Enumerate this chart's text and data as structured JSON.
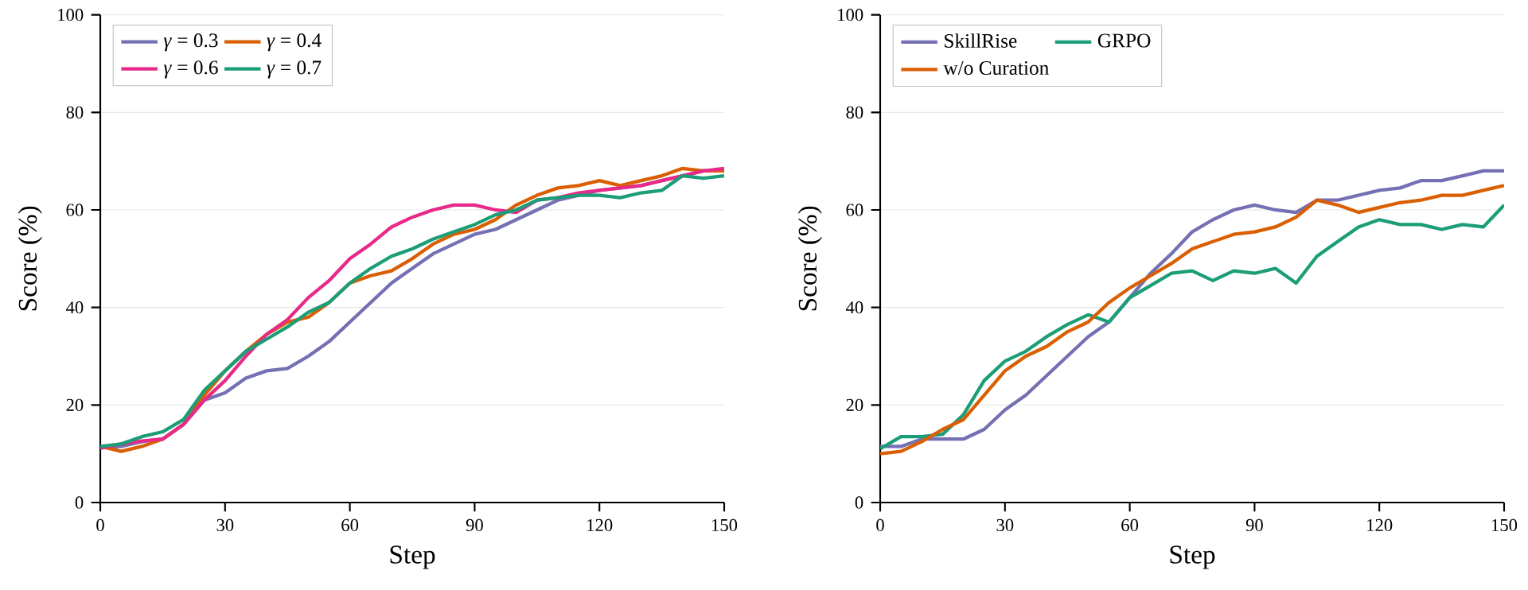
{
  "chart_data": [
    {
      "type": "line",
      "xlabel": "Step",
      "ylabel": "Score (%)",
      "xlim": [
        0,
        150
      ],
      "ylim": [
        0,
        100
      ],
      "xticks": [
        0,
        30,
        60,
        90,
        120,
        150
      ],
      "yticks": [
        0,
        20,
        40,
        60,
        80,
        100
      ],
      "grid": "y",
      "legend": "top left",
      "marker": "none",
      "line_style": "solid",
      "x": [
        0,
        5,
        10,
        15,
        20,
        25,
        30,
        35,
        40,
        45,
        50,
        55,
        60,
        65,
        70,
        75,
        80,
        85,
        90,
        95,
        100,
        105,
        110,
        115,
        120,
        125,
        130,
        135,
        140,
        145,
        150
      ],
      "series": [
        {
          "name": "*γ* = 0.3",
          "color": "#7570b3",
          "values": [
            11.2,
            11.5,
            12.5,
            13,
            16,
            21,
            22.5,
            25.5,
            27,
            27.5,
            30,
            33,
            37,
            41,
            45,
            48,
            51,
            53,
            55,
            56,
            58,
            60,
            62,
            63,
            64,
            64.5,
            65,
            66,
            67,
            68,
            68
          ]
        },
        {
          "name": "*γ* = 0.4",
          "color": "#d95f02",
          "values": [
            11.5,
            10.5,
            11.5,
            13,
            16,
            22,
            27,
            31,
            34.5,
            37,
            38,
            41,
            45,
            46.5,
            47.5,
            50,
            53,
            55,
            56,
            58,
            61,
            63,
            64.5,
            65,
            66,
            65,
            66,
            67,
            68.5,
            68,
            68
          ]
        },
        {
          "name": "*γ* = 0.6",
          "color": "#e7298a",
          "values": [
            11.2,
            12,
            12.6,
            13,
            16,
            21,
            25,
            30,
            34.5,
            37.5,
            42,
            45.5,
            50,
            53,
            56.5,
            58.5,
            60,
            61,
            61,
            60,
            59.5,
            62,
            62.5,
            63.5,
            64,
            64.5,
            65,
            66,
            67,
            68,
            68.5
          ]
        },
        {
          "name": "*γ* = 0.7",
          "color": "#1b9e77",
          "values": [
            11.5,
            12,
            13.5,
            14.5,
            17,
            23,
            27,
            31,
            33.5,
            36,
            39,
            41,
            45,
            48,
            50.5,
            52,
            54,
            55.5,
            57,
            59,
            60,
            62,
            62.5,
            63,
            63,
            62.5,
            63.5,
            64,
            67,
            66.5,
            67
          ]
        }
      ]
    },
    {
      "type": "line",
      "xlabel": "Step",
      "ylabel": "Score (%)",
      "xlim": [
        0,
        150
      ],
      "ylim": [
        0,
        100
      ],
      "xticks": [
        0,
        30,
        60,
        90,
        120,
        150
      ],
      "yticks": [
        0,
        20,
        40,
        60,
        80,
        100
      ],
      "grid": "y",
      "legend": "top left",
      "marker": "none",
      "line_style": "solid",
      "x": [
        0,
        5,
        10,
        15,
        20,
        25,
        30,
        35,
        40,
        45,
        50,
        55,
        60,
        65,
        70,
        75,
        80,
        85,
        90,
        95,
        100,
        105,
        110,
        115,
        120,
        125,
        130,
        135,
        140,
        145,
        150
      ],
      "series": [
        {
          "name": "SkillRise",
          "color": "#7570b3",
          "values": [
            11.5,
            11.5,
            13,
            13,
            13,
            15,
            19,
            22,
            26,
            30,
            34,
            37,
            42,
            47,
            51,
            55.5,
            58,
            60,
            61,
            60,
            59.5,
            62,
            62,
            63,
            64,
            64.5,
            66,
            66,
            67,
            68,
            68
          ]
        },
        {
          "name": "GRPO",
          "color": "#1b9e77",
          "values": [
            11,
            13.5,
            13.5,
            14,
            18,
            25,
            29,
            31,
            34,
            36.5,
            38.5,
            37,
            42,
            44.5,
            47,
            47.5,
            45.5,
            47.5,
            47,
            48,
            45,
            50.5,
            53.5,
            56.5,
            58,
            57,
            57,
            56,
            57,
            56.5,
            61
          ]
        },
        {
          "name": "w/o Curation",
          "color": "#d95f02",
          "values": [
            10,
            10.5,
            12.5,
            15,
            17,
            22,
            27,
            30,
            32,
            35,
            37,
            41,
            44,
            46.5,
            49,
            52,
            53.5,
            55,
            55.5,
            56.5,
            58.5,
            62,
            61,
            59.5,
            60.5,
            61.5,
            62,
            63,
            63,
            64,
            65
          ]
        }
      ]
    }
  ]
}
